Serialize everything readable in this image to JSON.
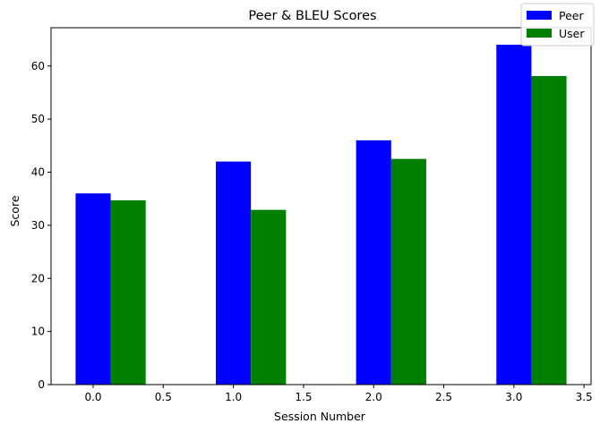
{
  "chart_data": {
    "type": "bar",
    "title": "Peer & BLEU Scores",
    "xlabel": "Session Number",
    "ylabel": "Score",
    "x": [
      0,
      1,
      2,
      3
    ],
    "bar_width": 0.25,
    "series": [
      {
        "name": "Peer",
        "color": "#0000ff",
        "offset": 0,
        "values": [
          36,
          42,
          46,
          64
        ]
      },
      {
        "name": "User",
        "color": "#008000",
        "offset": 0.25,
        "values": [
          34.7,
          32.9,
          42.5,
          58.1
        ]
      }
    ],
    "xlim": [
      -0.3,
      3.55
    ],
    "ylim": [
      0,
      67.2
    ],
    "xticks": [
      0.0,
      0.5,
      1.0,
      1.5,
      2.0,
      2.5,
      3.0,
      3.5
    ],
    "xtick_labels": [
      "0.0",
      "0.5",
      "1.0",
      "1.5",
      "2.0",
      "2.5",
      "3.0",
      "3.5"
    ],
    "yticks": [
      0,
      10,
      20,
      30,
      40,
      50,
      60
    ],
    "ytick_labels": [
      "0",
      "10",
      "20",
      "30",
      "40",
      "50",
      "60"
    ],
    "legend": "top-right",
    "grid": false
  }
}
